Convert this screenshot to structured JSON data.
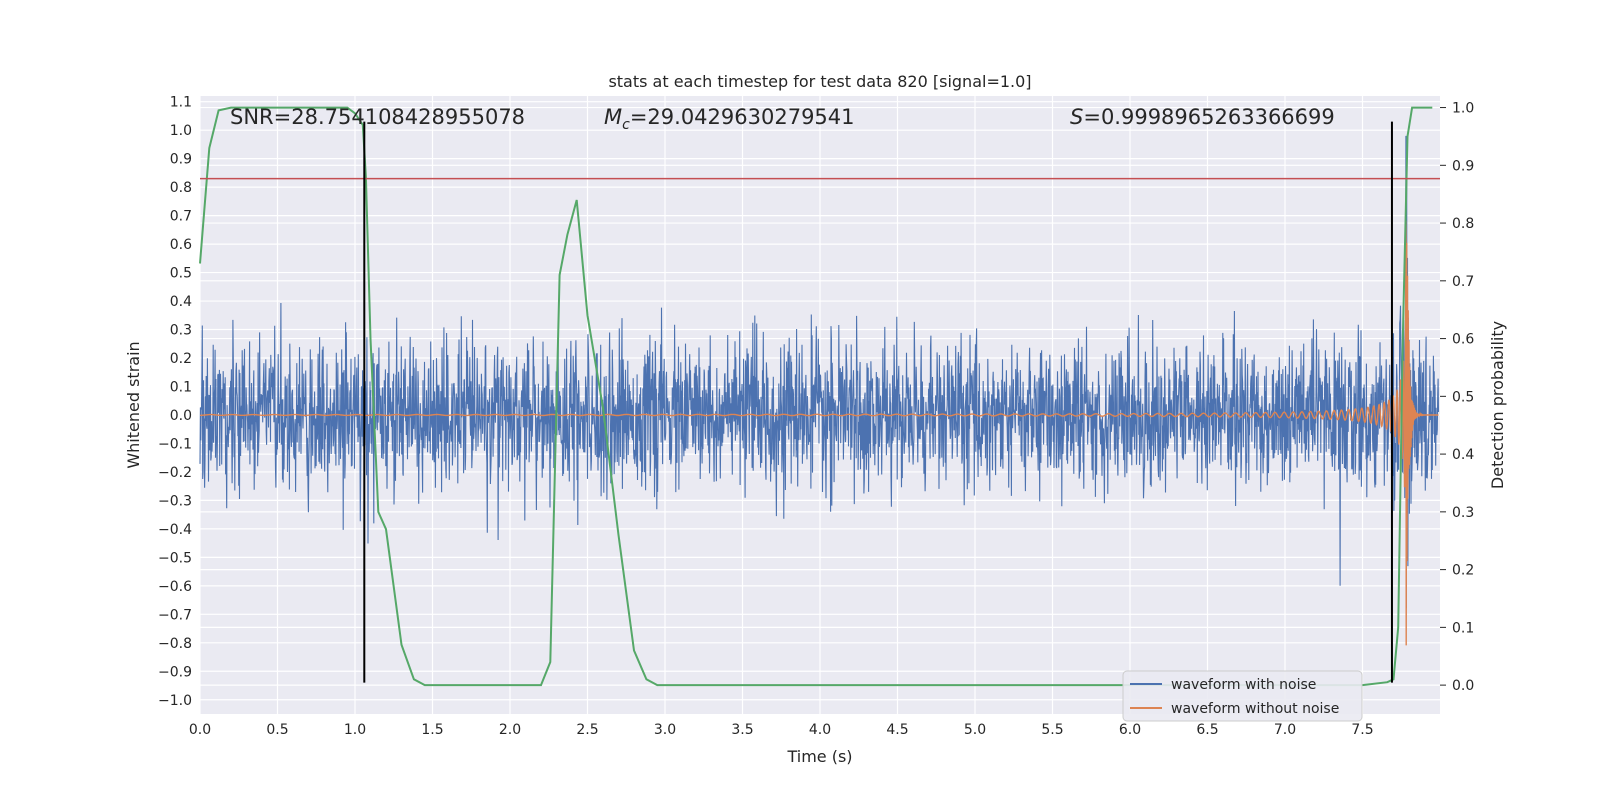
{
  "chart_data": {
    "type": "line",
    "title": "stats at each timestep for test data 820 [signal=1.0]",
    "xlabel": "Time (s)",
    "ylabel": "Whitened strain",
    "ylabel_right": "Detection probability",
    "xlim": [
      0.0,
      8.0
    ],
    "ylim": [
      -1.05,
      1.12
    ],
    "ylim_right": [
      -0.05,
      1.02
    ],
    "x_ticks": [
      "0.0",
      "0.5",
      "1.0",
      "1.5",
      "2.0",
      "2.5",
      "3.0",
      "3.5",
      "4.0",
      "4.5",
      "5.0",
      "5.5",
      "6.0",
      "6.5",
      "7.0",
      "7.5"
    ],
    "y_ticks": [
      "1.1",
      "1.0",
      "0.9",
      "0.8",
      "0.7",
      "0.6",
      "0.5",
      "0.4",
      "0.3",
      "0.2",
      "0.1",
      "0.0",
      "−0.1",
      "−0.2",
      "−0.3",
      "−0.4",
      "−0.5",
      "−0.6",
      "−0.7",
      "−0.8",
      "−0.9",
      "−1.0"
    ],
    "y_ticks_right": [
      "1.0",
      "0.9",
      "0.8",
      "0.7",
      "0.6",
      "0.5",
      "0.4",
      "0.3",
      "0.2",
      "0.1",
      "0.0"
    ],
    "grid": true,
    "legend_position": "lower-right",
    "annotations": {
      "snr": "SNR=28.754108428955078",
      "mc_symbol": "M",
      "mc_sub": "c",
      "mc_value": "=29.0429630279541",
      "s_symbol": "S",
      "s_value": "=0.9998965263366699"
    },
    "series": [
      {
        "name": "waveform with noise",
        "color": "#4c72b0",
        "axis": "left",
        "kind": "noise",
        "std": 0.125,
        "duration": 7.99,
        "samples": 3200
      },
      {
        "name": "waveform without noise",
        "color": "#dd8452",
        "axis": "left",
        "kind": "chirp",
        "merger_time": 7.78,
        "duration": 7.99,
        "samples": 5000
      },
      {
        "axis": "right",
        "color": "#55a868",
        "kind": "probability",
        "x": [
          0.0,
          0.06,
          0.12,
          0.2,
          0.4,
          0.6,
          0.8,
          0.95,
          1.0,
          1.05,
          1.07,
          1.1,
          1.15,
          1.2,
          1.3,
          1.38,
          1.45,
          1.6,
          2.0,
          2.2,
          2.26,
          2.32,
          2.37,
          2.43,
          2.5,
          2.6,
          2.7,
          2.8,
          2.88,
          2.95,
          3.2,
          3.5,
          4.0,
          5.0,
          6.0,
          7.0,
          7.5,
          7.66,
          7.7,
          7.73,
          7.76,
          7.79,
          7.82,
          7.86,
          7.95
        ],
        "y": [
          0.73,
          0.93,
          0.995,
          1.0,
          1.0,
          1.0,
          1.0,
          1.0,
          0.99,
          0.97,
          0.88,
          0.6,
          0.3,
          0.27,
          0.07,
          0.01,
          0.0,
          0.0,
          0.0,
          0.0,
          0.04,
          0.71,
          0.78,
          0.84,
          0.64,
          0.48,
          0.26,
          0.06,
          0.01,
          0.0,
          0.0,
          0.0,
          0.0,
          0.0,
          0.0,
          0.0,
          0.0,
          0.005,
          0.01,
          0.1,
          0.6,
          0.95,
          1.0,
          1.0,
          1.0
        ]
      },
      {
        "axis": "left",
        "color": "#c44e52",
        "kind": "threshold",
        "y": 0.83
      },
      {
        "axis": "left",
        "color": "#000000",
        "kind": "vline",
        "x": 1.06,
        "y_range": [
          -0.94,
          1.03
        ]
      },
      {
        "axis": "left",
        "color": "#000000",
        "kind": "vline",
        "x": 7.69,
        "y_range": [
          -0.94,
          1.03
        ]
      }
    ]
  }
}
